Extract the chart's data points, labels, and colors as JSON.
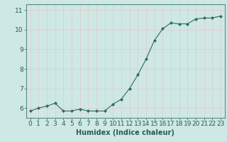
{
  "x": [
    0,
    1,
    2,
    3,
    4,
    5,
    6,
    7,
    8,
    9,
    10,
    11,
    12,
    13,
    14,
    15,
    16,
    17,
    18,
    19,
    20,
    21,
    22,
    23
  ],
  "y": [
    5.85,
    6.0,
    6.1,
    6.25,
    5.85,
    5.85,
    5.95,
    5.85,
    5.85,
    5.85,
    6.2,
    6.45,
    7.0,
    7.7,
    8.5,
    9.45,
    10.05,
    10.35,
    10.3,
    10.3,
    10.55,
    10.6,
    10.6,
    10.7
  ],
  "line_color": "#2d6b5e",
  "marker": "D",
  "marker_size": 2.0,
  "bg_color": "#cde8e5",
  "grid_color": "#b0d4d0",
  "xlabel": "Humidex (Indice chaleur)",
  "xlabel_fontsize": 7,
  "tick_fontsize": 6.5,
  "ylim": [
    5.5,
    11.3
  ],
  "xlim": [
    -0.5,
    23.5
  ],
  "yticks": [
    6,
    7,
    8,
    9,
    10,
    11
  ],
  "xticks": [
    0,
    1,
    2,
    3,
    4,
    5,
    6,
    7,
    8,
    9,
    10,
    11,
    12,
    13,
    14,
    15,
    16,
    17,
    18,
    19,
    20,
    21,
    22,
    23
  ]
}
